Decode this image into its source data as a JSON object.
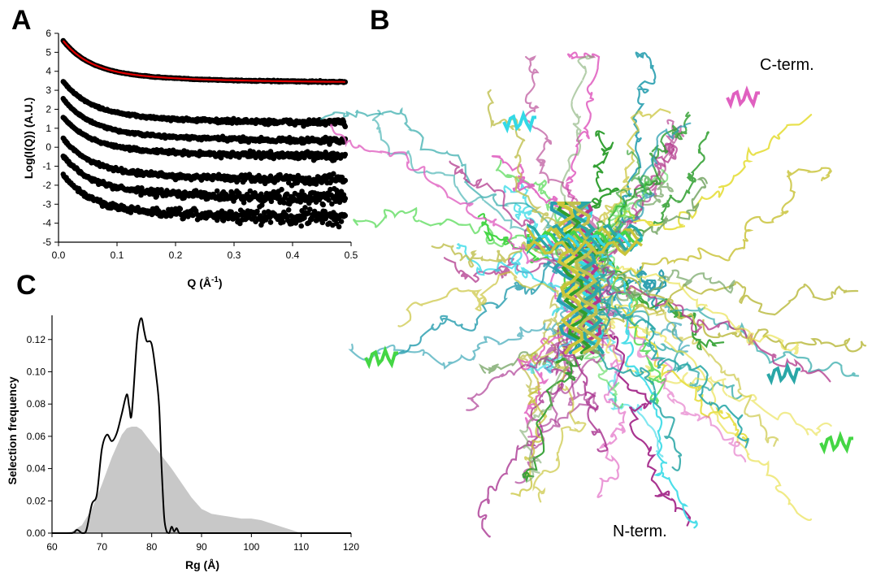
{
  "figure": {
    "panel_a_letter": "A",
    "panel_b_letter": "B",
    "panel_c_letter": "C",
    "c_term_label": "C-term.",
    "n_term_label": "N-term."
  },
  "chart_data": [
    {
      "panel": "A",
      "type": "scatter",
      "title": "",
      "xlabel": "Q (Å",
      "xlabel_sup": "-1",
      "xlabel_close": ")",
      "ylabel": "Log(I(Q)) (A.U.)",
      "xlim": [
        0.0,
        0.5
      ],
      "ylim": [
        -5,
        6
      ],
      "xticks": [
        "0.0",
        "0.1",
        "0.2",
        "0.3",
        "0.4",
        "0.5"
      ],
      "yticks": [
        "-5",
        "-4",
        "-3",
        "-2",
        "-1",
        "0",
        "1",
        "2",
        "3",
        "4",
        "5",
        "6"
      ],
      "grid": false,
      "series": [
        {
          "x0": 0.008,
          "x1": 0.49,
          "start": 5.95,
          "plateau": 3.4,
          "decay": 0.045,
          "noise": 0.02,
          "color": "#000000",
          "fit_color": "#e00000",
          "fit": true
        },
        {
          "x0": 0.008,
          "x1": 0.49,
          "start": 3.8,
          "plateau": 1.25,
          "decay": 0.045,
          "noise": 0.08
        },
        {
          "x0": 0.008,
          "x1": 0.49,
          "start": 2.9,
          "plateau": 0.3,
          "decay": 0.045,
          "noise": 0.08
        },
        {
          "x0": 0.008,
          "x1": 0.49,
          "start": 1.9,
          "plateau": -0.5,
          "decay": 0.045,
          "noise": 0.1
        },
        {
          "x0": 0.008,
          "x1": 0.49,
          "start": 0.8,
          "plateau": -1.75,
          "decay": 0.045,
          "noise": 0.14
        },
        {
          "x0": 0.008,
          "x1": 0.49,
          "start": -0.1,
          "plateau": -2.7,
          "decay": 0.045,
          "noise": 0.2
        },
        {
          "x0": 0.008,
          "x1": 0.49,
          "start": -1.1,
          "plateau": -3.75,
          "decay": 0.045,
          "noise": 0.25
        }
      ]
    },
    {
      "panel": "C",
      "type": "area",
      "title": "",
      "xlabel": "Rg (Å)",
      "ylabel": "Selection frequency",
      "xlim": [
        60,
        120
      ],
      "ylim": [
        0,
        0.135
      ],
      "xticks": [
        "60",
        "70",
        "80",
        "90",
        "100",
        "110",
        "120"
      ],
      "yticks": [
        "0.00",
        "0.02",
        "0.04",
        "0.06",
        "0.08",
        "0.10",
        "0.12"
      ],
      "grid": false,
      "series": [
        {
          "style": "filled-gray",
          "x": [
            62,
            64,
            66,
            68,
            70,
            72,
            74,
            75,
            76,
            77,
            78,
            79,
            80,
            82,
            84,
            86,
            88,
            90,
            92,
            94,
            96,
            98,
            100,
            102,
            104,
            106,
            108,
            110
          ],
          "y": [
            0.0,
            0.001,
            0.005,
            0.015,
            0.03,
            0.047,
            0.061,
            0.065,
            0.066,
            0.066,
            0.064,
            0.06,
            0.056,
            0.048,
            0.04,
            0.031,
            0.022,
            0.015,
            0.012,
            0.011,
            0.01,
            0.009,
            0.009,
            0.008,
            0.006,
            0.004,
            0.002,
            0.0
          ]
        },
        {
          "style": "black-line",
          "x": [
            60,
            64,
            65,
            66,
            66.5,
            67,
            68,
            69,
            70,
            71,
            72,
            73,
            74,
            75,
            75.5,
            76,
            77,
            77.5,
            78,
            78.5,
            79,
            80,
            81,
            81.5,
            82,
            82.5,
            83,
            83.5,
            84,
            84.5,
            85,
            85.5,
            86,
            90,
            100,
            110,
            120
          ],
          "y": [
            0.0,
            0.0,
            0.002,
            0.0,
            0.0,
            0.003,
            0.018,
            0.024,
            0.052,
            0.061,
            0.057,
            0.062,
            0.074,
            0.086,
            0.078,
            0.074,
            0.118,
            0.13,
            0.133,
            0.125,
            0.119,
            0.117,
            0.095,
            0.078,
            0.04,
            0.01,
            0.001,
            0.0,
            0.004,
            0.001,
            0.003,
            0.0,
            0.0,
            0.0,
            0.0,
            0.0,
            0.0
          ]
        }
      ]
    }
  ],
  "ensemble": {
    "colors": [
      "#2a9fb0",
      "#2aa7a7",
      "#a8328f",
      "#b23a8c",
      "#c9c43a",
      "#e8e04a",
      "#2e9e2e",
      "#44d644",
      "#7aa86a",
      "#e060c0",
      "#33d9e6",
      "#c0c050"
    ]
  }
}
